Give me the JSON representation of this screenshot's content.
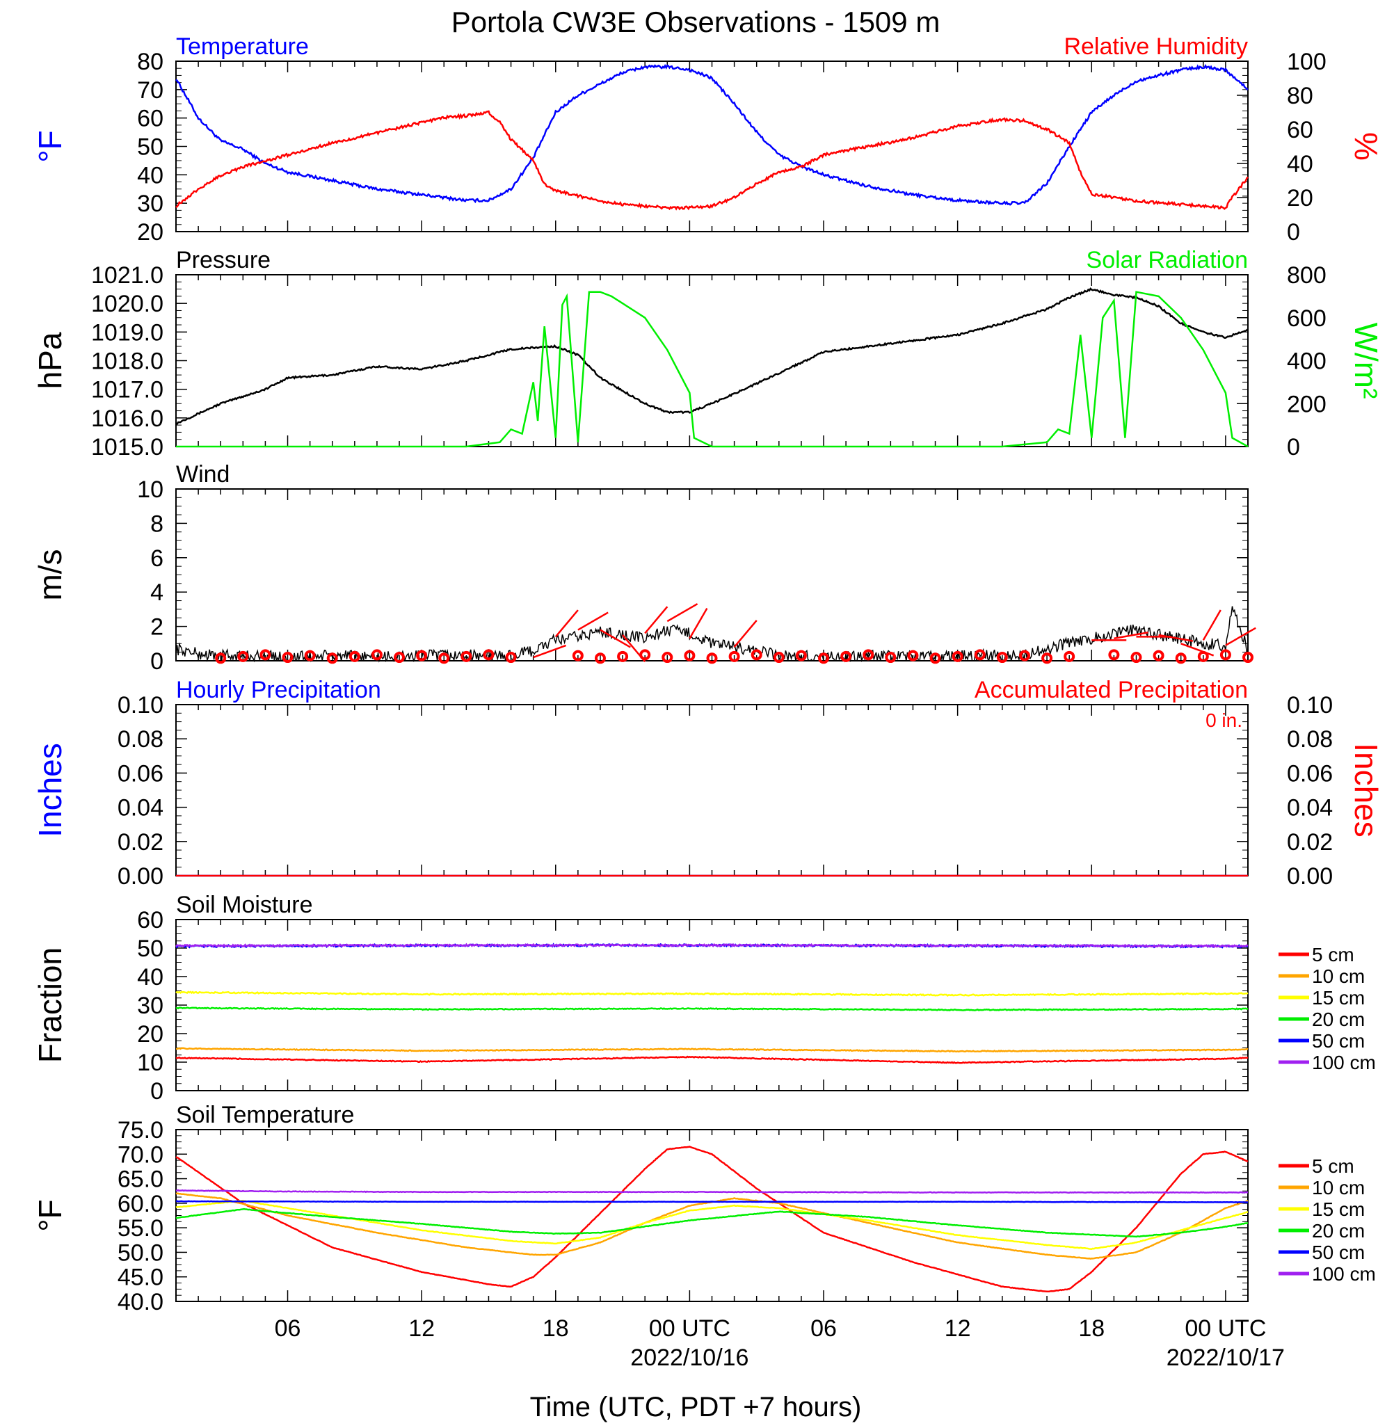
{
  "title": "Portola CW3E Observations - 1509 m",
  "x_axis": {
    "label": "Time (UTC, PDT +7 hours)",
    "tick_labels": [
      "06",
      "12",
      "18",
      "00 UTC",
      "06",
      "12",
      "18",
      "00 UTC"
    ],
    "tick_hours": [
      6,
      12,
      18,
      24,
      30,
      36,
      42,
      48
    ],
    "date_labels": [
      {
        "hour": 24,
        "text": "2022/10/16"
      },
      {
        "hour": 48,
        "text": "2022/10/17"
      }
    ],
    "range_hours": [
      1,
      49
    ]
  },
  "colors": {
    "temperature": "#0000ff",
    "humidity": "#ff0000",
    "pressure": "#000000",
    "solar": "#00ee00",
    "wind": "#000000",
    "wind_barb": "#ff0000",
    "precip_hourly": "#0000ff",
    "precip_accum": "#ff0000",
    "soil_5": "#ff0000",
    "soil_10": "#ffa500",
    "soil_15": "#ffff00",
    "soil_20": "#00ee00",
    "soil_50": "#0000ff",
    "soil_100": "#a020f0"
  },
  "chart_data": [
    {
      "type": "line",
      "panel": "temp-rh",
      "left_title": "Temperature",
      "right_title": "Relative Humidity",
      "ylabel_left": "°F",
      "ylabel_right": "%",
      "ylim_left": [
        20,
        80
      ],
      "ylim_right": [
        0,
        100
      ],
      "yticks_left": [
        "80",
        "70",
        "60",
        "50",
        "40",
        "30",
        "20"
      ],
      "yticks_right": [
        "100",
        "80",
        "60",
        "40",
        "20",
        "0"
      ],
      "series": [
        {
          "axis": "left",
          "color_key": "temperature",
          "x": [
            1,
            2,
            3,
            4,
            5,
            6,
            8,
            10,
            12,
            14,
            15,
            16,
            17,
            18,
            19,
            20,
            21,
            22,
            23,
            24,
            25,
            26,
            27,
            28,
            29,
            30,
            32,
            34,
            36,
            38,
            39,
            40,
            41,
            42,
            43,
            44,
            45,
            46,
            47,
            48,
            49
          ],
          "y": [
            74,
            60,
            52,
            49,
            44,
            41,
            38,
            35,
            33,
            31,
            31,
            35,
            46,
            62,
            68,
            72,
            76,
            78,
            78,
            77,
            74,
            65,
            55,
            47,
            43,
            40,
            36,
            33,
            31,
            30,
            30,
            37,
            50,
            62,
            68,
            73,
            75,
            77,
            78,
            77,
            70
          ]
        },
        {
          "axis": "right",
          "color_key": "humidity",
          "x": [
            1,
            2,
            3,
            4,
            6,
            8,
            10,
            12,
            13,
            14,
            15,
            15.5,
            16,
            17,
            17.5,
            18,
            19,
            20,
            21,
            22,
            23,
            24,
            25,
            26,
            27,
            28,
            29,
            30,
            32,
            34,
            36,
            38,
            39,
            40,
            41,
            41.5,
            42,
            44,
            46,
            48,
            48.3,
            49
          ],
          "y": [
            15,
            25,
            33,
            38,
            45,
            52,
            58,
            64,
            67,
            68,
            70,
            64,
            54,
            42,
            28,
            24,
            21,
            18,
            16,
            15,
            14,
            14,
            15,
            20,
            28,
            35,
            38,
            45,
            50,
            55,
            62,
            66,
            65,
            60,
            52,
            35,
            22,
            18,
            16,
            14,
            20,
            32
          ]
        }
      ]
    },
    {
      "type": "line",
      "panel": "pressure-solar",
      "left_title": "Pressure",
      "right_title": "Solar Radiation",
      "ylabel_left": "hPa",
      "ylabel_right": "W/m²",
      "ylim_left": [
        1015.0,
        1021.0
      ],
      "ylim_right": [
        0,
        800
      ],
      "yticks_left": [
        "1021.0",
        "1020.0",
        "1019.0",
        "1018.0",
        "1017.0",
        "1016.0",
        "1015.0"
      ],
      "yticks_right": [
        "800",
        "600",
        "400",
        "200",
        "0"
      ],
      "series": [
        {
          "axis": "left",
          "color_key": "pressure",
          "x": [
            1,
            3,
            5,
            6,
            8,
            10,
            12,
            14,
            16,
            18,
            19,
            20,
            22,
            23,
            24,
            25,
            27,
            30,
            33,
            36,
            38,
            40,
            41,
            42,
            43,
            44,
            45,
            46,
            47,
            48,
            49
          ],
          "y": [
            1015.8,
            1016.5,
            1017.0,
            1017.4,
            1017.5,
            1017.8,
            1017.7,
            1018.0,
            1018.4,
            1018.5,
            1018.2,
            1017.4,
            1016.5,
            1016.2,
            1016.2,
            1016.5,
            1017.2,
            1018.3,
            1018.6,
            1018.9,
            1019.3,
            1019.8,
            1020.2,
            1020.5,
            1020.3,
            1020.2,
            1019.9,
            1019.3,
            1019.0,
            1018.8,
            1019.1
          ]
        },
        {
          "axis": "right",
          "color_key": "solar",
          "x": [
            1,
            14,
            15.5,
            16,
            16.5,
            17,
            17.2,
            17.5,
            18,
            18.3,
            18.5,
            19,
            19.5,
            20,
            20.5,
            22,
            23,
            24,
            24.2,
            25,
            38,
            40,
            40.5,
            41,
            41.5,
            42,
            42.5,
            43,
            43.5,
            44,
            45,
            46,
            47,
            48,
            48.3,
            49
          ],
          "y": [
            0,
            0,
            20,
            80,
            60,
            300,
            120,
            560,
            40,
            660,
            700,
            20,
            720,
            720,
            700,
            600,
            450,
            250,
            40,
            0,
            0,
            20,
            80,
            60,
            520,
            40,
            600,
            680,
            40,
            720,
            700,
            600,
            450,
            250,
            40,
            0
          ]
        }
      ]
    },
    {
      "type": "line",
      "panel": "wind",
      "left_title": "Wind",
      "ylabel_left": "m/s",
      "ylim_left": [
        0,
        10
      ],
      "yticks_left": [
        "10",
        "8",
        "6",
        "4",
        "2",
        "0"
      ],
      "series": [
        {
          "axis": "left",
          "color_key": "wind",
          "x": [
            1,
            2,
            3,
            4,
            6,
            8,
            10,
            12,
            14,
            16,
            17,
            18,
            19,
            20,
            21,
            22,
            23,
            24,
            25,
            26,
            27,
            28,
            30,
            32,
            34,
            36,
            38,
            39,
            40,
            41,
            42,
            43,
            44,
            45,
            46,
            47,
            48,
            48.3,
            49
          ],
          "y": [
            0.7,
            0.4,
            0.3,
            0.3,
            0.2,
            0.3,
            0.2,
            0.3,
            0.3,
            0.3,
            0.6,
            1.2,
            1.4,
            1.7,
            1.5,
            1.3,
            1.8,
            1.6,
            1.0,
            0.8,
            0.6,
            0.3,
            0.2,
            0.3,
            0.2,
            0.3,
            0.3,
            0.4,
            0.6,
            1.1,
            1.3,
            1.6,
            1.8,
            1.5,
            1.3,
            1.0,
            0.9,
            3.0,
            0.6
          ]
        }
      ],
      "calm_hours": [
        3,
        4,
        5,
        6,
        7,
        8,
        9,
        10,
        11,
        12,
        13,
        14,
        15,
        16,
        19,
        20,
        21,
        22,
        23,
        24,
        25,
        26,
        27,
        28,
        29,
        30,
        31,
        32,
        33,
        34,
        35,
        36,
        37,
        38,
        39,
        40,
        41,
        43,
        44,
        45,
        46,
        47,
        48,
        49
      ],
      "barbs": [
        {
          "hour": 17,
          "speed": 0.2,
          "dir": 250
        },
        {
          "hour": 18,
          "speed": 1.4,
          "dir": 220
        },
        {
          "hour": 19,
          "speed": 1.8,
          "dir": 240
        },
        {
          "hour": 20,
          "speed": 1.8,
          "dir": 300
        },
        {
          "hour": 21,
          "speed": 1.5,
          "dir": 320
        },
        {
          "hour": 22,
          "speed": 1.6,
          "dir": 220
        },
        {
          "hour": 23,
          "speed": 2.3,
          "dir": 240
        },
        {
          "hour": 24,
          "speed": 1.3,
          "dir": 210
        },
        {
          "hour": 26,
          "speed": 0.8,
          "dir": 220
        },
        {
          "hour": 42,
          "speed": 1.2,
          "dir": 270
        },
        {
          "hour": 43,
          "speed": 1.3,
          "dir": 260
        },
        {
          "hour": 44,
          "speed": 1.4,
          "dir": 270
        },
        {
          "hour": 45,
          "speed": 1.5,
          "dir": 280
        },
        {
          "hour": 46,
          "speed": 1.0,
          "dir": 290
        },
        {
          "hour": 47,
          "speed": 1.2,
          "dir": 210
        },
        {
          "hour": 48,
          "speed": 0.9,
          "dir": 240
        }
      ]
    },
    {
      "type": "line",
      "panel": "precip",
      "left_title": "Hourly Precipitation",
      "right_title": "Accumulated Precipitation",
      "accum_total": "0 in.",
      "ylabel_left": "Inches",
      "ylabel_right": "Inches",
      "ylim_left": [
        0,
        0.1
      ],
      "ylim_right": [
        0,
        0.1
      ],
      "yticks_left": [
        "0.10",
        "0.08",
        "0.06",
        "0.04",
        "0.02",
        "0.00"
      ],
      "yticks_right": [
        "0.10",
        "0.08",
        "0.06",
        "0.04",
        "0.02",
        "0.00"
      ],
      "series": [
        {
          "axis": "left",
          "color_key": "precip_hourly",
          "x": [
            1,
            49
          ],
          "y": [
            0,
            0
          ]
        },
        {
          "axis": "right",
          "color_key": "precip_accum",
          "x": [
            1,
            49
          ],
          "y": [
            0,
            0
          ]
        }
      ]
    },
    {
      "type": "line",
      "panel": "soil-moisture",
      "left_title": "Soil Moisture",
      "ylabel_left": "Fraction",
      "ylim_left": [
        0,
        60
      ],
      "yticks_left": [
        "60",
        "50",
        "40",
        "30",
        "20",
        "10",
        "0"
      ],
      "legend": [
        "5 cm",
        "10 cm",
        "15 cm",
        "20 cm",
        "50 cm",
        "100 cm"
      ],
      "series": [
        {
          "name": "5 cm",
          "color_key": "soil_5",
          "x": [
            1,
            12,
            24,
            36,
            48,
            49
          ],
          "y": [
            11.5,
            10.2,
            11.8,
            9.8,
            11.2,
            11.5
          ]
        },
        {
          "name": "10 cm",
          "color_key": "soil_10",
          "x": [
            1,
            12,
            24,
            36,
            48,
            49
          ],
          "y": [
            14.8,
            14.0,
            14.6,
            13.8,
            14.3,
            14.5
          ]
        },
        {
          "name": "15 cm",
          "color_key": "soil_15",
          "x": [
            1,
            12,
            24,
            36,
            48,
            49
          ],
          "y": [
            34.5,
            33.8,
            34.0,
            33.5,
            34.0,
            34.2
          ]
        },
        {
          "name": "20 cm",
          "color_key": "soil_20",
          "x": [
            1,
            12,
            24,
            36,
            48,
            49
          ],
          "y": [
            29.0,
            28.5,
            28.8,
            28.3,
            28.6,
            28.7
          ]
        },
        {
          "name": "50 cm",
          "color_key": "soil_50",
          "x": [
            1,
            12,
            24,
            36,
            48,
            49
          ],
          "y": [
            50.6,
            50.9,
            51.0,
            50.8,
            50.6,
            50.5
          ]
        },
        {
          "name": "100 cm",
          "color_key": "soil_100",
          "x": [
            1,
            12,
            24,
            36,
            48,
            49
          ],
          "y": [
            50.8,
            51.0,
            51.0,
            50.9,
            50.7,
            50.8
          ]
        }
      ]
    },
    {
      "type": "line",
      "panel": "soil-temp",
      "left_title": "Soil Temperature",
      "ylabel_left": "°F",
      "ylim_left": [
        40.0,
        75.0
      ],
      "yticks_left": [
        "75.0",
        "70.0",
        "65.0",
        "60.0",
        "55.0",
        "50.0",
        "45.0",
        "40.0"
      ],
      "legend": [
        "5 cm",
        "10 cm",
        "15 cm",
        "20 cm",
        "50 cm",
        "100 cm"
      ],
      "series": [
        {
          "name": "5 cm",
          "color_key": "soil_5",
          "x": [
            1,
            4,
            8,
            12,
            15,
            16,
            17,
            18,
            20,
            22,
            23,
            24,
            25,
            27,
            30,
            34,
            38,
            40,
            41,
            42,
            44,
            46,
            47,
            48,
            49
          ],
          "y": [
            69.5,
            60,
            51,
            46,
            43.5,
            43.0,
            45,
            49,
            58,
            67,
            71,
            71.5,
            70,
            63,
            54,
            48,
            43,
            42,
            42.5,
            46,
            55,
            66,
            70,
            70.5,
            68.5
          ]
        },
        {
          "name": "10 cm",
          "color_key": "soil_10",
          "x": [
            1,
            3,
            6,
            10,
            14,
            17,
            18,
            20,
            22,
            24,
            26,
            28,
            32,
            36,
            40,
            42,
            44,
            46,
            48,
            49
          ],
          "y": [
            62,
            61,
            57.5,
            54,
            51,
            49.5,
            49.5,
            52,
            56,
            59.5,
            61.0,
            60,
            56,
            52,
            49.5,
            48.7,
            50,
            54,
            59,
            60.5
          ]
        },
        {
          "name": "15 cm",
          "color_key": "soil_15",
          "x": [
            1,
            4,
            8,
            12,
            16,
            18,
            20,
            22,
            24,
            26,
            28,
            32,
            36,
            40,
            42,
            44,
            46,
            48,
            49
          ],
          "y": [
            59.2,
            60.5,
            57.5,
            54.5,
            52.3,
            51.8,
            53,
            56,
            58.5,
            59.5,
            59.0,
            56.5,
            53.5,
            51.5,
            50.7,
            52,
            54.5,
            57,
            58.2
          ]
        },
        {
          "name": "20 cm",
          "color_key": "soil_20",
          "x": [
            1,
            4,
            8,
            12,
            16,
            18,
            20,
            24,
            28,
            32,
            36,
            40,
            44,
            46,
            48,
            49
          ],
          "y": [
            57,
            58.8,
            57.2,
            55.8,
            54.2,
            53.8,
            54,
            56.5,
            58.3,
            57.2,
            55.5,
            54.0,
            53.2,
            54,
            55.2,
            56
          ]
        },
        {
          "name": "50 cm",
          "color_key": "soil_50",
          "x": [
            1,
            12,
            24,
            36,
            49
          ],
          "y": [
            60.4,
            60.3,
            60.3,
            60.3,
            60.2
          ]
        },
        {
          "name": "100 cm",
          "color_key": "soil_100",
          "x": [
            1,
            6,
            12,
            24,
            36,
            49
          ],
          "y": [
            62.6,
            62.4,
            62.3,
            62.3,
            62.2,
            62.2
          ]
        }
      ]
    }
  ]
}
